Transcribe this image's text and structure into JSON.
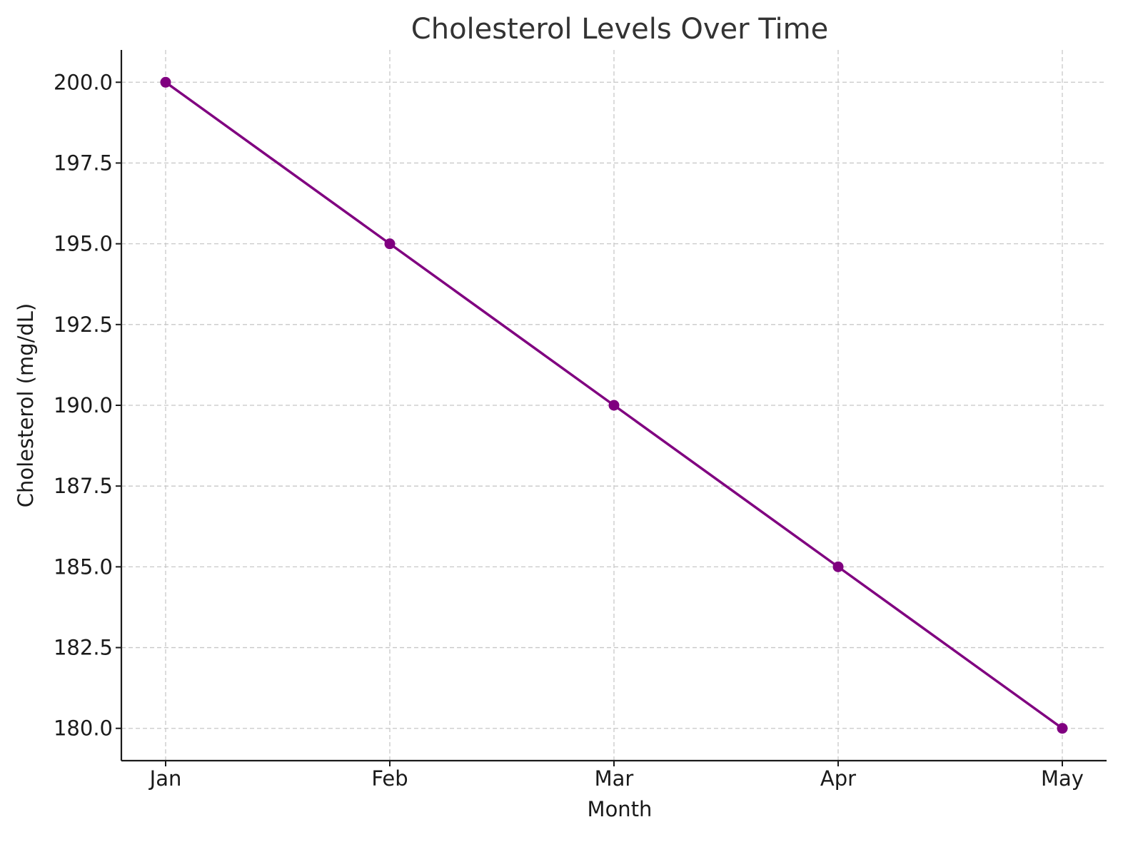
{
  "chart_data": {
    "type": "line",
    "title": "Cholesterol Levels Over Time",
    "xlabel": "Month",
    "ylabel": "Cholesterol (mg/dL)",
    "categories": [
      "Jan",
      "Feb",
      "Mar",
      "Apr",
      "May"
    ],
    "series": [
      {
        "values": [
          200,
          195,
          190,
          185,
          180
        ],
        "color": "#800080",
        "marker": "circle"
      }
    ],
    "yticks": [
      "180.0",
      "182.5",
      "185.0",
      "187.5",
      "190.0",
      "192.5",
      "195.0",
      "197.5",
      "200.0"
    ],
    "ylim": [
      179,
      201
    ],
    "grid": true,
    "legend": "none"
  }
}
